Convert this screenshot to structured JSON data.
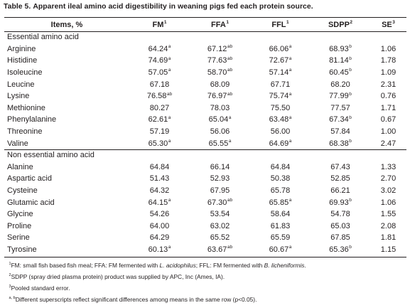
{
  "caption": {
    "label": "Table 5.",
    "text": "Apparent ileal amino acid digestibility in weaning pigs fed each protein source."
  },
  "columns": [
    {
      "label": "Items, %",
      "sup": ""
    },
    {
      "label": "FM",
      "sup": "1"
    },
    {
      "label": "FFA",
      "sup": "1"
    },
    {
      "label": "FFL",
      "sup": "1"
    },
    {
      "label": "SDPP",
      "sup": "2"
    },
    {
      "label": "SE",
      "sup": "3"
    }
  ],
  "sections": [
    {
      "title": "Essential amino acid",
      "rows": [
        {
          "name": "Arginine",
          "values": [
            [
              "64.24",
              "a"
            ],
            [
              "67.12",
              "ab"
            ],
            [
              "66.06",
              "a"
            ],
            [
              "68.93",
              "b"
            ],
            [
              "1.06",
              ""
            ]
          ]
        },
        {
          "name": "Histidine",
          "values": [
            [
              "74.69",
              "a"
            ],
            [
              "77.63",
              "ab"
            ],
            [
              "72.67",
              "a"
            ],
            [
              "81.14",
              "b"
            ],
            [
              "1.78",
              ""
            ]
          ]
        },
        {
          "name": "Isoleucine",
          "values": [
            [
              "57.05",
              "a"
            ],
            [
              "58.70",
              "ab"
            ],
            [
              "57.14",
              "a"
            ],
            [
              "60.45",
              "b"
            ],
            [
              "1.09",
              ""
            ]
          ]
        },
        {
          "name": "Leucine",
          "values": [
            [
              "67.18",
              ""
            ],
            [
              "68.09",
              ""
            ],
            [
              "67.71",
              ""
            ],
            [
              "68.20",
              ""
            ],
            [
              "2.31",
              ""
            ]
          ]
        },
        {
          "name": "Lysine",
          "values": [
            [
              "76.58",
              "ab"
            ],
            [
              "76.97",
              "ab"
            ],
            [
              "75.74",
              "a"
            ],
            [
              "77.99",
              "b"
            ],
            [
              "0.76",
              ""
            ]
          ]
        },
        {
          "name": "Methionine",
          "values": [
            [
              "80.27",
              ""
            ],
            [
              "78.03",
              ""
            ],
            [
              "75.50",
              ""
            ],
            [
              "77.57",
              ""
            ],
            [
              "1.71",
              ""
            ]
          ]
        },
        {
          "name": "Phenylalanine",
          "values": [
            [
              "62.61",
              "a"
            ],
            [
              "65.04",
              "a"
            ],
            [
              "63.48",
              "a"
            ],
            [
              "67.34",
              "b"
            ],
            [
              "0.67",
              ""
            ]
          ]
        },
        {
          "name": "Threonine",
          "values": [
            [
              "57.19",
              ""
            ],
            [
              "56.06",
              ""
            ],
            [
              "56.00",
              ""
            ],
            [
              "57.84",
              ""
            ],
            [
              "1.00",
              ""
            ]
          ]
        },
        {
          "name": "Valine",
          "values": [
            [
              "65.30",
              "a"
            ],
            [
              "65.55",
              "a"
            ],
            [
              "64.69",
              "a"
            ],
            [
              "68.38",
              "b"
            ],
            [
              "2.47",
              ""
            ]
          ]
        }
      ]
    },
    {
      "title": "Non essential amino acid",
      "rows": [
        {
          "name": "Alanine",
          "values": [
            [
              "64.84",
              ""
            ],
            [
              "66.14",
              ""
            ],
            [
              "64.84",
              ""
            ],
            [
              "67.43",
              ""
            ],
            [
              "1.33",
              ""
            ]
          ]
        },
        {
          "name": "Aspartic acid",
          "values": [
            [
              "51.43",
              ""
            ],
            [
              "52.93",
              ""
            ],
            [
              "50.38",
              ""
            ],
            [
              "52.85",
              ""
            ],
            [
              "2.70",
              ""
            ]
          ]
        },
        {
          "name": "Cysteine",
          "values": [
            [
              "64.32",
              ""
            ],
            [
              "67.95",
              ""
            ],
            [
              "65.78",
              ""
            ],
            [
              "66.21",
              ""
            ],
            [
              "3.02",
              ""
            ]
          ]
        },
        {
          "name": "Glutamic acid",
          "values": [
            [
              "64.15",
              "a"
            ],
            [
              "67.30",
              "ab"
            ],
            [
              "65.85",
              "a"
            ],
            [
              "69.93",
              "b"
            ],
            [
              "1.06",
              ""
            ]
          ]
        },
        {
          "name": "Glycine",
          "values": [
            [
              "54.26",
              ""
            ],
            [
              "53.54",
              ""
            ],
            [
              "58.64",
              ""
            ],
            [
              "54.78",
              ""
            ],
            [
              "1.55",
              ""
            ]
          ]
        },
        {
          "name": "Proline",
          "values": [
            [
              "64.00",
              ""
            ],
            [
              "63.02",
              ""
            ],
            [
              "61.83",
              ""
            ],
            [
              "65.03",
              ""
            ],
            [
              "2.08",
              ""
            ]
          ]
        },
        {
          "name": "Serine",
          "values": [
            [
              "64.29",
              ""
            ],
            [
              "65.52",
              ""
            ],
            [
              "65.59",
              ""
            ],
            [
              "67.85",
              ""
            ],
            [
              "1.81",
              ""
            ]
          ]
        },
        {
          "name": "Tyrosine",
          "values": [
            [
              "60.13",
              "a"
            ],
            [
              "63.67",
              "ab"
            ],
            [
              "60.67",
              "a"
            ],
            [
              "65.36",
              "b"
            ],
            [
              "1.15",
              ""
            ]
          ]
        }
      ]
    }
  ],
  "footnotes": {
    "n1": {
      "sup": "1",
      "part1": "FM: small fish based fish meal; FFA: FM fermented with ",
      "organism1": "L. acidophilus",
      "part2": "; FFL: FM fermented with ",
      "organism2": "B. licheniformis",
      "part3": "."
    },
    "n2": {
      "sup": "2",
      "text": "SDPP (spray dried plasma protein) product was supplied by APC, Inc (Ames, IA)."
    },
    "n3": {
      "sup": "3",
      "text": "Pooled standard error."
    },
    "n4": {
      "sup": "a, b",
      "text": "Different superscripts reflect significant differences among means in the same row (p<0.05)."
    }
  }
}
